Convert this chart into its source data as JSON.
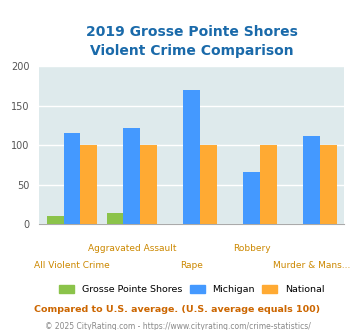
{
  "title_line1": "2019 Grosse Pointe Shores",
  "title_line2": "Violent Crime Comparison",
  "categories": [
    "All Violent Crime",
    "Aggravated Assault",
    "Rape",
    "Robbery",
    "Murder & Mans..."
  ],
  "grosse_pointe": [
    10,
    15,
    0,
    0,
    0
  ],
  "michigan": [
    115,
    122,
    170,
    66,
    112
  ],
  "national": [
    100,
    100,
    100,
    100,
    100
  ],
  "colors": {
    "grosse_pointe": "#8bc34a",
    "michigan": "#4499ff",
    "national": "#ffaa33"
  },
  "ylim": [
    0,
    200
  ],
  "yticks": [
    0,
    50,
    100,
    150,
    200
  ],
  "background_color": "#deeaec",
  "title_color": "#1a6aaa",
  "xlabel_color_top": "#cc8800",
  "xlabel_color_bottom": "#cc8800",
  "legend_labels": [
    "Grosse Pointe Shores",
    "Michigan",
    "National"
  ],
  "footnote1": "Compared to U.S. average. (U.S. average equals 100)",
  "footnote2": "© 2025 CityRating.com - https://www.cityrating.com/crime-statistics/",
  "footnote1_color": "#cc6600",
  "footnote2_color": "#888888"
}
